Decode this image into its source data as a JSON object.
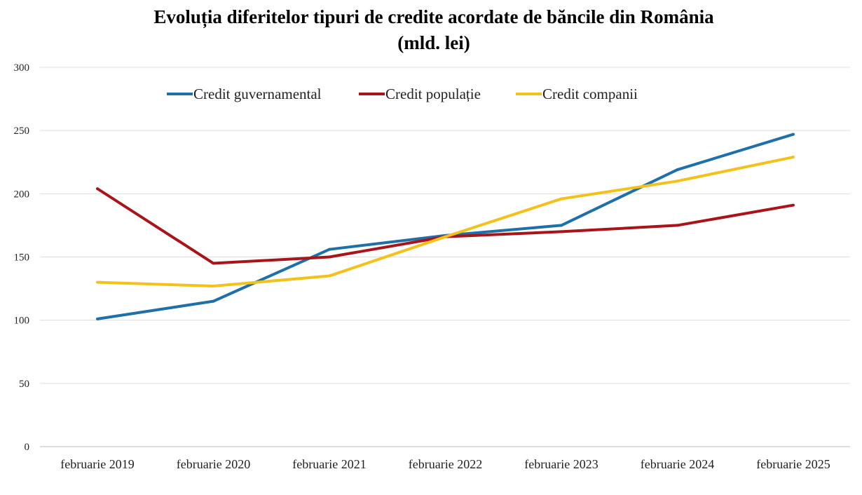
{
  "chart_data": {
    "type": "line",
    "title": "Evoluția diferitelor tipuri de credite acordate de băncile din România",
    "subtitle": "(mld. lei)",
    "xlabel": "",
    "ylabel": "",
    "categories": [
      "februarie 2019",
      "februarie 2020",
      "februarie 2021",
      "februarie 2022",
      "februarie 2023",
      "februarie 2024",
      "februarie 2025"
    ],
    "ylim": [
      0,
      300
    ],
    "yticks": [
      0,
      50,
      100,
      150,
      200,
      250,
      300
    ],
    "grid": true,
    "legend_position": "top",
    "series": [
      {
        "name": "Credit guvernamental",
        "color": "#1f6fa8",
        "values": [
          101,
          115,
          156,
          167,
          175,
          219,
          247
        ]
      },
      {
        "name": "Credit populație",
        "color": "#a8141a",
        "values": [
          204,
          145,
          150,
          166,
          170,
          175,
          191
        ]
      },
      {
        "name": "Credit companii",
        "color": "#f2c21b",
        "values": [
          130,
          127,
          135,
          166,
          196,
          210,
          229
        ]
      }
    ]
  }
}
